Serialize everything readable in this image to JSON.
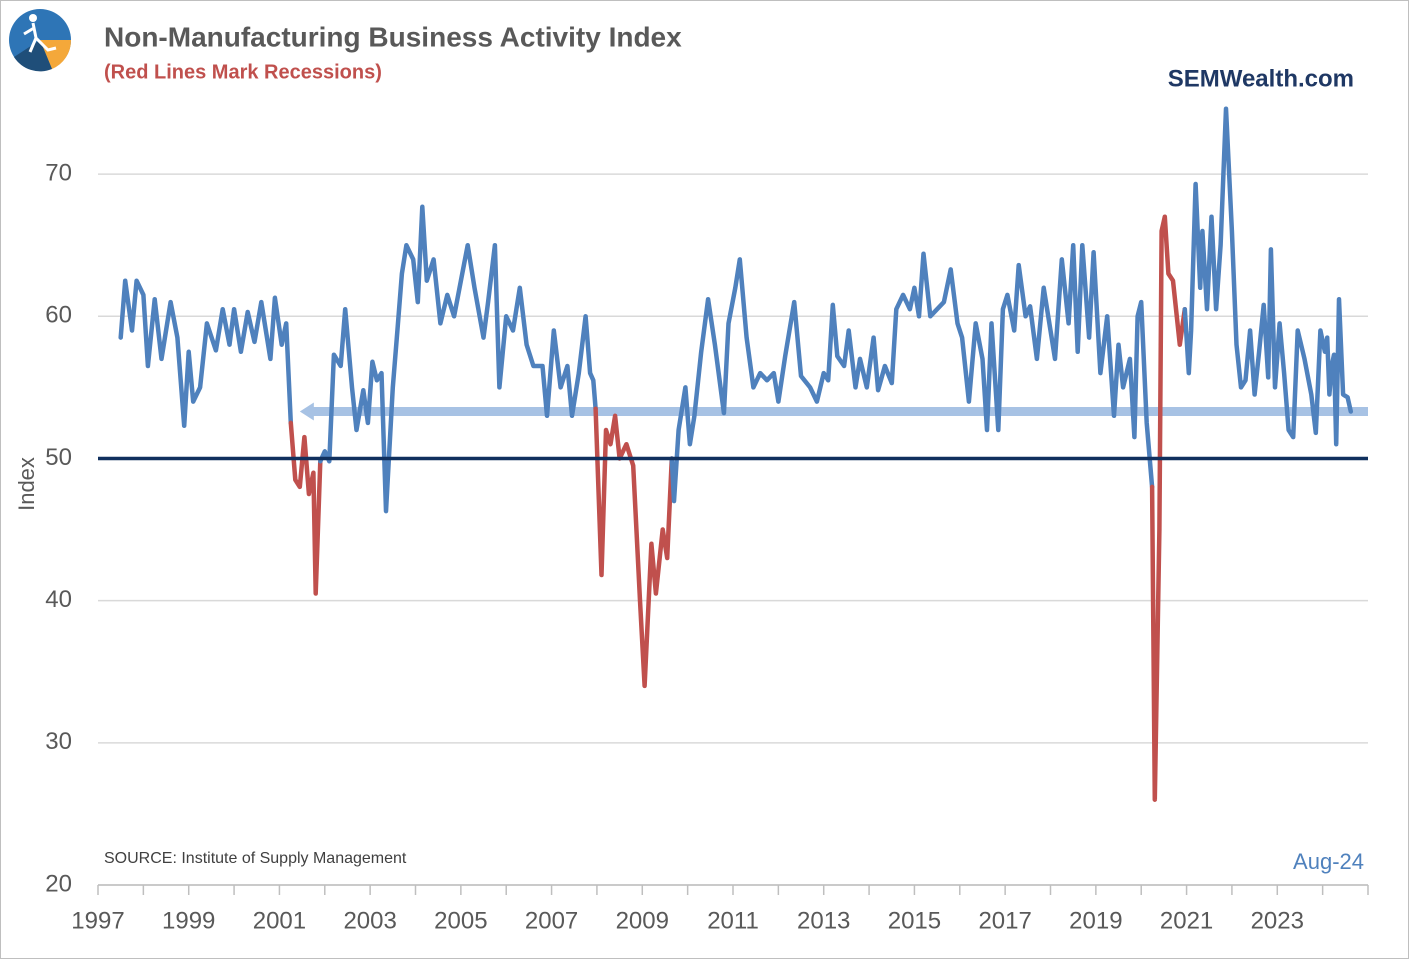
{
  "chart_data": {
    "type": "line",
    "title": "Non-Manufacturing Business Activity Index",
    "subtitle": "(Red Lines Mark Recessions)",
    "brand": "SEMWealth.com",
    "source": "SOURCE:  Institute of Supply Management",
    "last_date": "Aug-24",
    "y_label": "Index",
    "xlim": [
      1997,
      2025
    ],
    "xticks": [
      1997,
      1999,
      2001,
      2003,
      2005,
      2007,
      2009,
      2011,
      2013,
      2015,
      2017,
      2019,
      2021,
      2023
    ],
    "xminorticks": [
      1998,
      2000,
      2002,
      2004,
      2006,
      2008,
      2010,
      2012,
      2014,
      2016,
      2018,
      2020,
      2022,
      2024,
      2025
    ],
    "ylim": [
      20,
      75
    ],
    "yticks": [
      20,
      30,
      40,
      50,
      60,
      70
    ],
    "grid": true,
    "reference_line": {
      "value": 50,
      "color": "#10305e"
    },
    "arrow": {
      "value": 53.3,
      "from": 2025,
      "to": 2001.45,
      "color": "#a7c2e4"
    },
    "series": [
      {
        "color": "#4f81bd",
        "x": [
          1997.5,
          1997.6,
          1997.75,
          1997.85,
          1998.0,
          1998.1,
          1998.25,
          1998.4,
          1998.6,
          1998.75,
          1998.9,
          1999.0,
          1999.1,
          1999.25,
          1999.4,
          1999.6,
          1999.75,
          1999.9,
          2000.0,
          2000.15,
          2000.3,
          2000.45,
          2000.6,
          2000.8,
          2000.9,
          2001.05,
          2001.15,
          2001.25
        ],
        "values": [
          58.5,
          62.5,
          59,
          62.5,
          61.5,
          56.5,
          61.2,
          57,
          61,
          58.5,
          52.3,
          57.5,
          54,
          55,
          59.5,
          57.6,
          60.5,
          58,
          60.5,
          57.5,
          60.3,
          58.2,
          61,
          57,
          61.3,
          58,
          59.5,
          52.5
        ]
      },
      {
        "color": "#c0504d",
        "x": [
          2001.25,
          2001.35,
          2001.45,
          2001.55,
          2001.65,
          2001.75,
          2001.8,
          2001.9
        ],
        "values": [
          52.5,
          48.5,
          48,
          51.5,
          47.5,
          49,
          40.5,
          49.8
        ]
      },
      {
        "color": "#4f81bd",
        "x": [
          2001.9,
          2002.0,
          2002.1,
          2002.2,
          2002.35,
          2002.45,
          2002.6,
          2002.7,
          2002.85,
          2002.95,
          2003.05,
          2003.15,
          2003.25,
          2003.35,
          2003.5,
          2003.6,
          2003.7,
          2003.8,
          2003.95,
          2004.05,
          2004.15,
          2004.25,
          2004.4,
          2004.55,
          2004.7,
          2004.85,
          2005.0,
          2005.15,
          2005.3,
          2005.5,
          2005.6,
          2005.75,
          2005.85,
          2006.0,
          2006.15,
          2006.3,
          2006.45,
          2006.6,
          2006.8,
          2006.9,
          2007.05,
          2007.2,
          2007.35,
          2007.45,
          2007.6,
          2007.75,
          2007.85,
          2007.92,
          2007.97
        ],
        "values": [
          49.8,
          50.5,
          49.8,
          57.3,
          56.5,
          60.5,
          55,
          52,
          54.8,
          52.5,
          56.8,
          55.5,
          56,
          46.3,
          55,
          59,
          63,
          65,
          64,
          61,
          67.7,
          62.5,
          64,
          59.5,
          61.5,
          60,
          62.5,
          65,
          62,
          58.5,
          61,
          65,
          55,
          60,
          59,
          62,
          58,
          56.5,
          56.5,
          53,
          59,
          55,
          56.5,
          53,
          56,
          60,
          56,
          55.5,
          53.5
        ]
      },
      {
        "color": "#c0504d",
        "x": [
          2007.97,
          2008.1,
          2008.2,
          2008.3,
          2008.4,
          2008.5,
          2008.65,
          2008.8,
          2008.95,
          2009.05,
          2009.2,
          2009.3,
          2009.45,
          2009.55,
          2009.65
        ],
        "values": [
          53.5,
          41.8,
          52,
          51,
          53,
          50,
          51,
          49.5,
          40,
          34,
          44,
          40.5,
          45,
          43,
          50
        ]
      },
      {
        "color": "#4f81bd",
        "x": [
          2009.65,
          2009.7,
          2009.8,
          2009.95,
          2010.05,
          2010.15,
          2010.3,
          2010.45,
          2010.6,
          2010.8,
          2010.9,
          2011.05,
          2011.15,
          2011.3,
          2011.45,
          2011.6,
          2011.75,
          2011.9,
          2012.0,
          2012.15,
          2012.35,
          2012.5,
          2012.7,
          2012.85,
          2013.0,
          2013.1,
          2013.2,
          2013.3,
          2013.45,
          2013.55,
          2013.7,
          2013.8,
          2013.95,
          2014.1,
          2014.2,
          2014.35,
          2014.5,
          2014.6,
          2014.75,
          2014.9,
          2015.0,
          2015.1,
          2015.2,
          2015.35,
          2015.5,
          2015.65,
          2015.8,
          2015.95,
          2016.05,
          2016.2,
          2016.35,
          2016.5,
          2016.6,
          2016.7,
          2016.85,
          2016.95,
          2017.05,
          2017.2,
          2017.3,
          2017.45,
          2017.55,
          2017.7,
          2017.85,
          2018.0,
          2018.1,
          2018.25,
          2018.4,
          2018.5,
          2018.6,
          2018.7,
          2018.85,
          2018.95,
          2019.1,
          2019.25,
          2019.4,
          2019.5,
          2019.6,
          2019.75,
          2019.85,
          2019.92,
          2020.0,
          2020.12,
          2020.24
        ],
        "values": [
          50,
          47,
          52,
          55,
          51,
          53,
          57.5,
          61.2,
          58,
          53.2,
          59.5,
          62,
          64,
          58.5,
          55,
          56,
          55.5,
          56,
          54,
          57.2,
          61,
          55.8,
          55,
          54,
          56,
          55.5,
          60.8,
          57.2,
          56.5,
          59,
          55,
          57,
          55,
          58.5,
          54.8,
          56.5,
          55.3,
          60.5,
          61.5,
          60.5,
          62,
          60,
          64.4,
          60,
          60.5,
          61,
          63.3,
          59.5,
          58.5,
          54,
          59.5,
          57,
          52,
          59.5,
          52,
          60.5,
          61.5,
          59,
          63.6,
          60,
          60.7,
          57,
          62,
          59,
          57,
          64,
          59.5,
          65,
          57.5,
          65,
          58.5,
          64.5,
          56,
          60,
          53,
          58,
          55,
          57,
          51.5,
          60,
          61,
          52.5,
          48
        ]
      },
      {
        "color": "#c0504d",
        "x": [
          2020.24,
          2020.3,
          2020.4,
          2020.45,
          2020.52,
          2020.6,
          2020.7,
          2020.85,
          2020.96
        ],
        "values": [
          48,
          26,
          45,
          66,
          67,
          63,
          62.5,
          58,
          60.5
        ]
      },
      {
        "color": "#4f81bd",
        "x": [
          2020.96,
          2021.05,
          2021.1,
          2021.2,
          2021.3,
          2021.35,
          2021.45,
          2021.55,
          2021.65,
          2021.75,
          2021.87,
          2022.0,
          2022.1,
          2022.2,
          2022.3,
          2022.4,
          2022.5,
          2022.6,
          2022.7,
          2022.8,
          2022.86,
          2022.95,
          2023.05,
          2023.15,
          2023.25,
          2023.35,
          2023.45,
          2023.6,
          2023.75,
          2023.85,
          2023.95,
          2024.05,
          2024.1,
          2024.15,
          2024.2,
          2024.25,
          2024.3,
          2024.36,
          2024.45,
          2024.55,
          2024.62
        ],
        "values": [
          60.5,
          56,
          59,
          69.3,
          62,
          66,
          60.5,
          67,
          60.5,
          65,
          74.6,
          66,
          58,
          55,
          55.5,
          59,
          54.5,
          57.5,
          60.8,
          55.7,
          64.7,
          55,
          59.5,
          56,
          52,
          51.5,
          59,
          57,
          54.5,
          51.8,
          59,
          57.5,
          58.5,
          54.5,
          56.5,
          57.3,
          51,
          61.2,
          54.5,
          54.3,
          53.3
        ]
      }
    ]
  }
}
